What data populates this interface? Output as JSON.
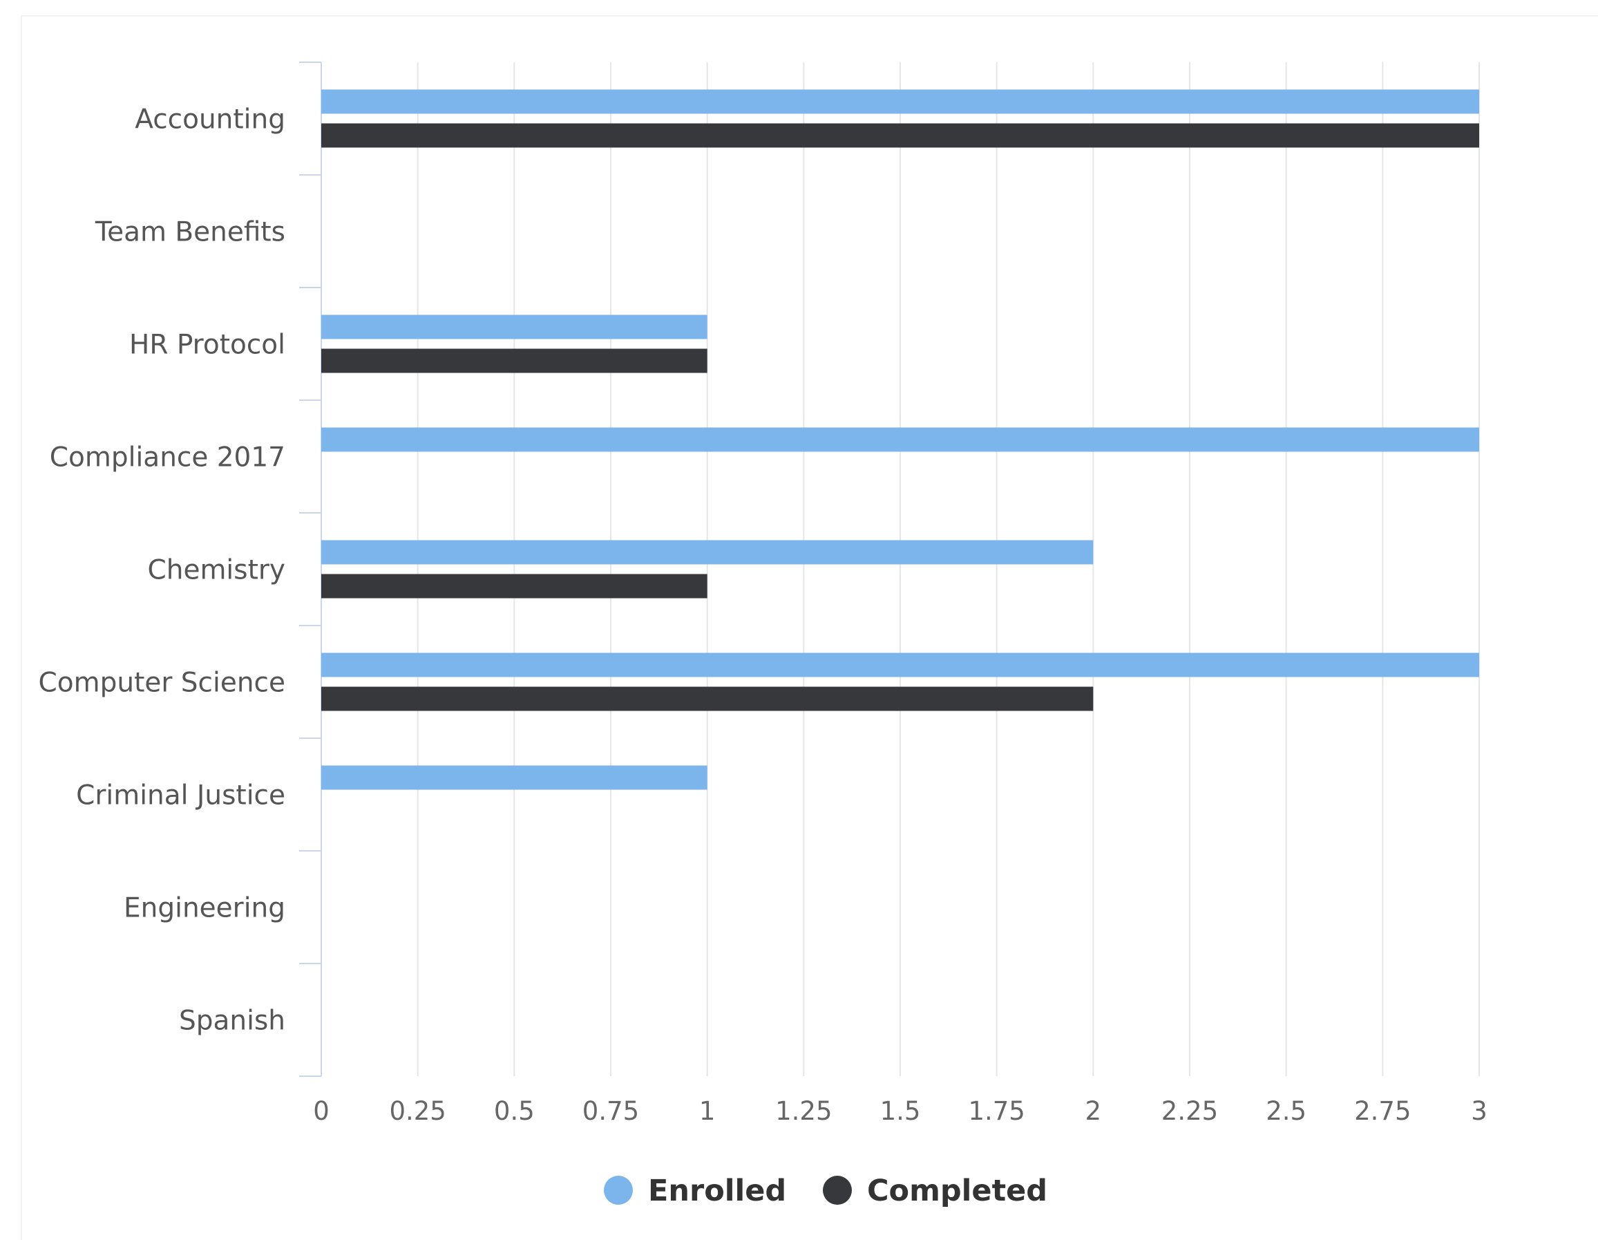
{
  "chart_data": {
    "type": "bar",
    "orientation": "horizontal",
    "categories": [
      "Accounting",
      "Team Benefits",
      "HR Protocol",
      "Compliance 2017",
      "Chemistry",
      "Computer Science",
      "Criminal Justice",
      "Engineering",
      "Spanish"
    ],
    "series": [
      {
        "name": "Enrolled",
        "color": "#7cb5ec",
        "values": [
          3,
          0,
          1,
          3,
          2,
          3,
          1,
          0,
          0
        ]
      },
      {
        "name": "Completed",
        "color": "#37383c",
        "values": [
          3,
          0,
          1,
          0,
          1,
          2,
          0,
          0,
          0
        ]
      }
    ],
    "xaxis": {
      "min": 0,
      "max": 3,
      "ticks": [
        0,
        0.25,
        0.5,
        0.75,
        1,
        1.25,
        1.5,
        1.75,
        2,
        2.25,
        2.5,
        2.75,
        3
      ],
      "tick_labels": [
        "0",
        "0.25",
        "0.5",
        "0.75",
        "1",
        "1.25",
        "1.5",
        "1.75",
        "2",
        "2.25",
        "2.5",
        "2.75",
        "3"
      ]
    },
    "grid": true,
    "legend": "bottom-center",
    "title": "",
    "xlabel": "",
    "ylabel": ""
  }
}
